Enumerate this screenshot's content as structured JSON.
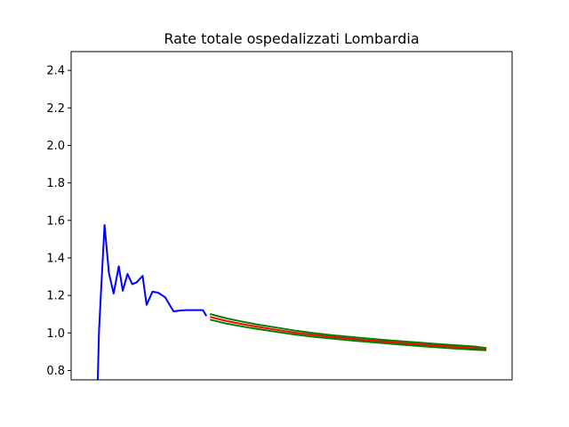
{
  "chart_data": {
    "type": "line",
    "title": "Rate totale ospedalizzati Lombardia",
    "xlabel": "",
    "ylabel": "",
    "xlim": [
      0,
      100
    ],
    "ylim": [
      0.75,
      2.5
    ],
    "yticks": [
      0.8,
      1.0,
      1.2,
      1.4,
      1.6,
      1.8,
      2.0,
      2.2,
      2.4
    ],
    "yticklabels": [
      "0.8",
      "1.0",
      "1.2",
      "1.4",
      "1.6",
      "1.8",
      "2.0",
      "2.2",
      "2.4"
    ],
    "grid": false,
    "series": [
      {
        "color": "#0000ff",
        "x": [
          0,
          0.3,
          0.8,
          1.7,
          2.8,
          4.0,
          5.3,
          6.3,
          7.5,
          8.7,
          9.8,
          11.3,
          12.3,
          13.8,
          15.2,
          17.0,
          19.1,
          20.9,
          22.4,
          24.6,
          26.5,
          27.4
        ],
        "y": [
          0.75,
          1.0,
          1.22,
          1.575,
          1.32,
          1.21,
          1.355,
          1.225,
          1.315,
          1.26,
          1.27,
          1.305,
          1.15,
          1.22,
          1.215,
          1.19,
          1.115,
          1.12,
          1.122,
          1.122,
          1.122,
          1.09
        ]
      },
      {
        "color": "#008000",
        "x": [
          28.3,
          32,
          36,
          40,
          45,
          50,
          55,
          60,
          65,
          70,
          75,
          80,
          85,
          90,
          95,
          98
        ],
        "y": [
          1.101,
          1.08,
          1.062,
          1.046,
          1.029,
          1.012,
          0.998,
          0.986,
          0.976,
          0.967,
          0.958,
          0.95,
          0.942,
          0.935,
          0.928,
          0.92
        ]
      },
      {
        "color": "#ff0000",
        "x": [
          28.3,
          32,
          36,
          40,
          45,
          50,
          55,
          60,
          65,
          70,
          75,
          80,
          85,
          90,
          95,
          98
        ],
        "y": [
          1.086,
          1.066,
          1.049,
          1.034,
          1.017,
          1.001,
          0.988,
          0.977,
          0.967,
          0.958,
          0.949,
          0.941,
          0.933,
          0.926,
          0.919,
          0.914
        ]
      },
      {
        "color": "#008000",
        "x": [
          28.3,
          32,
          36,
          40,
          45,
          50,
          55,
          60,
          65,
          70,
          75,
          80,
          85,
          90,
          95,
          98
        ],
        "y": [
          1.071,
          1.052,
          1.036,
          1.022,
          1.006,
          0.991,
          0.978,
          0.968,
          0.958,
          0.949,
          0.94,
          0.932,
          0.924,
          0.917,
          0.911,
          0.908
        ]
      }
    ]
  }
}
